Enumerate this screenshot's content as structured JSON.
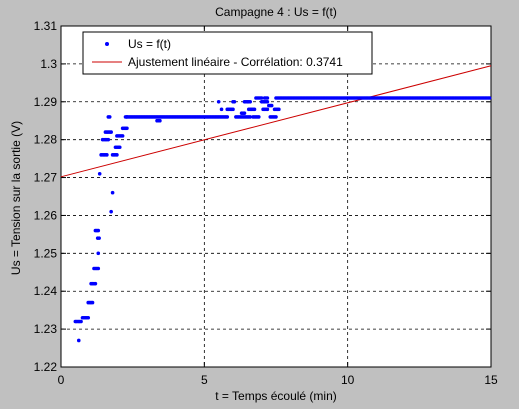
{
  "chart_data": {
    "type": "scatter",
    "title": "Campagne 4 : Us = f(t)",
    "xlabel": "t = Temps écoulé (min)",
    "ylabel": "Us = Tension sur la sortie (V)",
    "xlim": [
      0,
      15
    ],
    "ylim": [
      1.22,
      1.31
    ],
    "xticks": [
      0,
      5,
      10,
      15
    ],
    "xtick_labels": [
      "0",
      "5",
      "10",
      "15"
    ],
    "yticks": [
      1.22,
      1.23,
      1.24,
      1.25,
      1.26,
      1.27,
      1.28,
      1.29,
      1.3,
      1.31
    ],
    "ytick_labels": [
      "1.22",
      "1.23",
      "1.24",
      "1.25",
      "1.26",
      "1.27",
      "1.28",
      "1.29",
      "1.3",
      "1.31"
    ],
    "grid": true,
    "legend_position": "top-left",
    "series": [
      {
        "name": "Us = f(t)",
        "kind": "markers",
        "color": "#0000ff",
        "segments": [
          {
            "x_start": 0.5,
            "x_end": 0.7,
            "step": 0.05,
            "y": 1.232
          },
          {
            "x_start": 0.62,
            "x_end": 0.62,
            "step": 0.05,
            "y": 1.227
          },
          {
            "x_start": 0.75,
            "x_end": 0.95,
            "step": 0.05,
            "y": 1.233
          },
          {
            "x_start": 0.95,
            "x_end": 1.1,
            "step": 0.05,
            "y": 1.237
          },
          {
            "x_start": 1.05,
            "x_end": 1.2,
            "step": 0.05,
            "y": 1.242
          },
          {
            "x_start": 1.15,
            "x_end": 1.3,
            "step": 0.05,
            "y": 1.246
          },
          {
            "x_start": 1.2,
            "x_end": 1.3,
            "step": 0.05,
            "y": 1.256
          },
          {
            "x_start": 1.28,
            "x_end": 1.35,
            "step": 0.05,
            "y": 1.254
          },
          {
            "x_start": 1.3,
            "x_end": 1.3,
            "step": 0.05,
            "y": 1.25
          },
          {
            "x_start": 1.35,
            "x_end": 1.35,
            "step": 0.05,
            "y": 1.271
          },
          {
            "x_start": 1.4,
            "x_end": 1.6,
            "step": 0.05,
            "y": 1.276
          },
          {
            "x_start": 1.45,
            "x_end": 1.65,
            "step": 0.05,
            "y": 1.28
          },
          {
            "x_start": 1.55,
            "x_end": 1.75,
            "step": 0.05,
            "y": 1.282
          },
          {
            "x_start": 1.65,
            "x_end": 1.7,
            "step": 0.05,
            "y": 1.286
          },
          {
            "x_start": 1.75,
            "x_end": 1.75,
            "step": 0.05,
            "y": 1.261
          },
          {
            "x_start": 1.8,
            "x_end": 1.8,
            "step": 0.05,
            "y": 1.266
          },
          {
            "x_start": 1.8,
            "x_end": 1.95,
            "step": 0.05,
            "y": 1.276
          },
          {
            "x_start": 1.9,
            "x_end": 2.05,
            "step": 0.05,
            "y": 1.278
          },
          {
            "x_start": 1.95,
            "x_end": 2.15,
            "step": 0.05,
            "y": 1.281
          },
          {
            "x_start": 2.15,
            "x_end": 2.3,
            "step": 0.05,
            "y": 1.283
          },
          {
            "x_start": 2.25,
            "x_end": 2.3,
            "step": 0.05,
            "y": 1.286
          },
          {
            "x_start": 2.3,
            "x_end": 5.8,
            "step": 0.05,
            "y": 1.286
          },
          {
            "x_start": 3.35,
            "x_end": 3.45,
            "step": 0.05,
            "y": 1.285
          },
          {
            "x_start": 5.5,
            "x_end": 5.5,
            "step": 0.05,
            "y": 1.29
          },
          {
            "x_start": 5.6,
            "x_end": 5.6,
            "step": 0.05,
            "y": 1.288
          },
          {
            "x_start": 5.8,
            "x_end": 6.0,
            "step": 0.05,
            "y": 1.288
          },
          {
            "x_start": 6.0,
            "x_end": 6.05,
            "step": 0.05,
            "y": 1.29
          },
          {
            "x_start": 6.1,
            "x_end": 6.6,
            "step": 0.05,
            "y": 1.286
          },
          {
            "x_start": 6.3,
            "x_end": 6.4,
            "step": 0.05,
            "y": 1.287
          },
          {
            "x_start": 6.4,
            "x_end": 6.6,
            "step": 0.05,
            "y": 1.29
          },
          {
            "x_start": 6.55,
            "x_end": 6.75,
            "step": 0.05,
            "y": 1.288
          },
          {
            "x_start": 6.7,
            "x_end": 6.9,
            "step": 0.05,
            "y": 1.286
          },
          {
            "x_start": 6.8,
            "x_end": 7.0,
            "step": 0.05,
            "y": 1.291
          },
          {
            "x_start": 7.0,
            "x_end": 7.2,
            "step": 0.05,
            "y": 1.29
          },
          {
            "x_start": 7.05,
            "x_end": 7.2,
            "step": 0.05,
            "y": 1.288
          },
          {
            "x_start": 7.1,
            "x_end": 7.2,
            "step": 0.05,
            "y": 1.291
          },
          {
            "x_start": 7.25,
            "x_end": 7.35,
            "step": 0.05,
            "y": 1.289
          },
          {
            "x_start": 7.3,
            "x_end": 7.5,
            "step": 0.05,
            "y": 1.286
          },
          {
            "x_start": 7.45,
            "x_end": 7.6,
            "step": 0.05,
            "y": 1.288
          },
          {
            "x_start": 7.5,
            "x_end": 14.95,
            "step": 0.05,
            "y": 1.291
          }
        ]
      },
      {
        "name": "Ajustement linéaire - Corrélation: 0.3741",
        "kind": "line",
        "color": "#cc0000",
        "x": [
          0,
          15
        ],
        "y": [
          1.2702,
          1.2995
        ]
      }
    ]
  }
}
